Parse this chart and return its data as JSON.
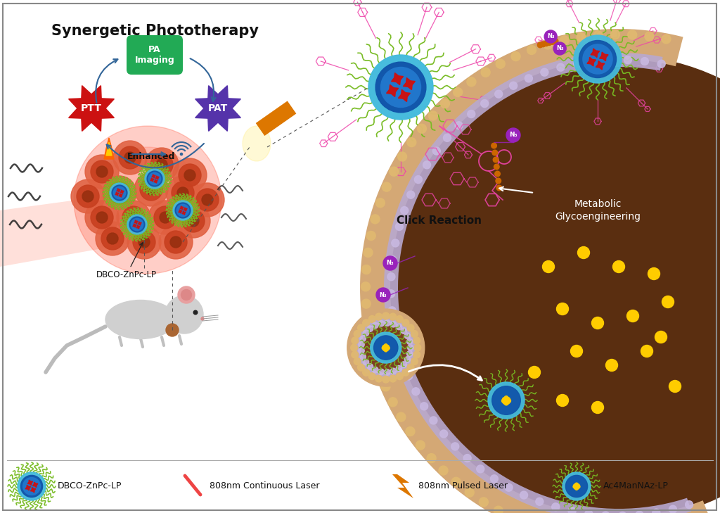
{
  "title": "Synergetic Phototherapy",
  "bg_color": "#ffffff",
  "ptt_label": "PTT",
  "pat_label": "PAT",
  "pa_label": "PA\nImaging",
  "enhanced_label": "Enhanced",
  "click_reaction_label": "Click Reaction",
  "metabolic_label": "Metabolic\nGlycoengineering",
  "dbco_label": "DBCO-ZnPc-LP",
  "ptt_color": "#cc1111",
  "pat_color": "#5533aa",
  "pa_color": "#22aa55",
  "arrow_color": "#336699",
  "nanoparticle_core_color": "#1a99cc",
  "green_spike_color": "#77bb22",
  "pink_chain_color": "#ee44aa",
  "orange_linker_color": "#cc6600",
  "purple_azide_color": "#9922bb",
  "tumor_cell_color": "#dd5533",
  "orange_laser_color": "#dd7700",
  "yellow_dot_color": "#ffcc00",
  "membrane_tan_color": "#d4a070",
  "membrane_lavender_color": "#c0b0d8",
  "cell_interior_color": "#6b3a1f",
  "cell_bg_dark": "#4a2510"
}
